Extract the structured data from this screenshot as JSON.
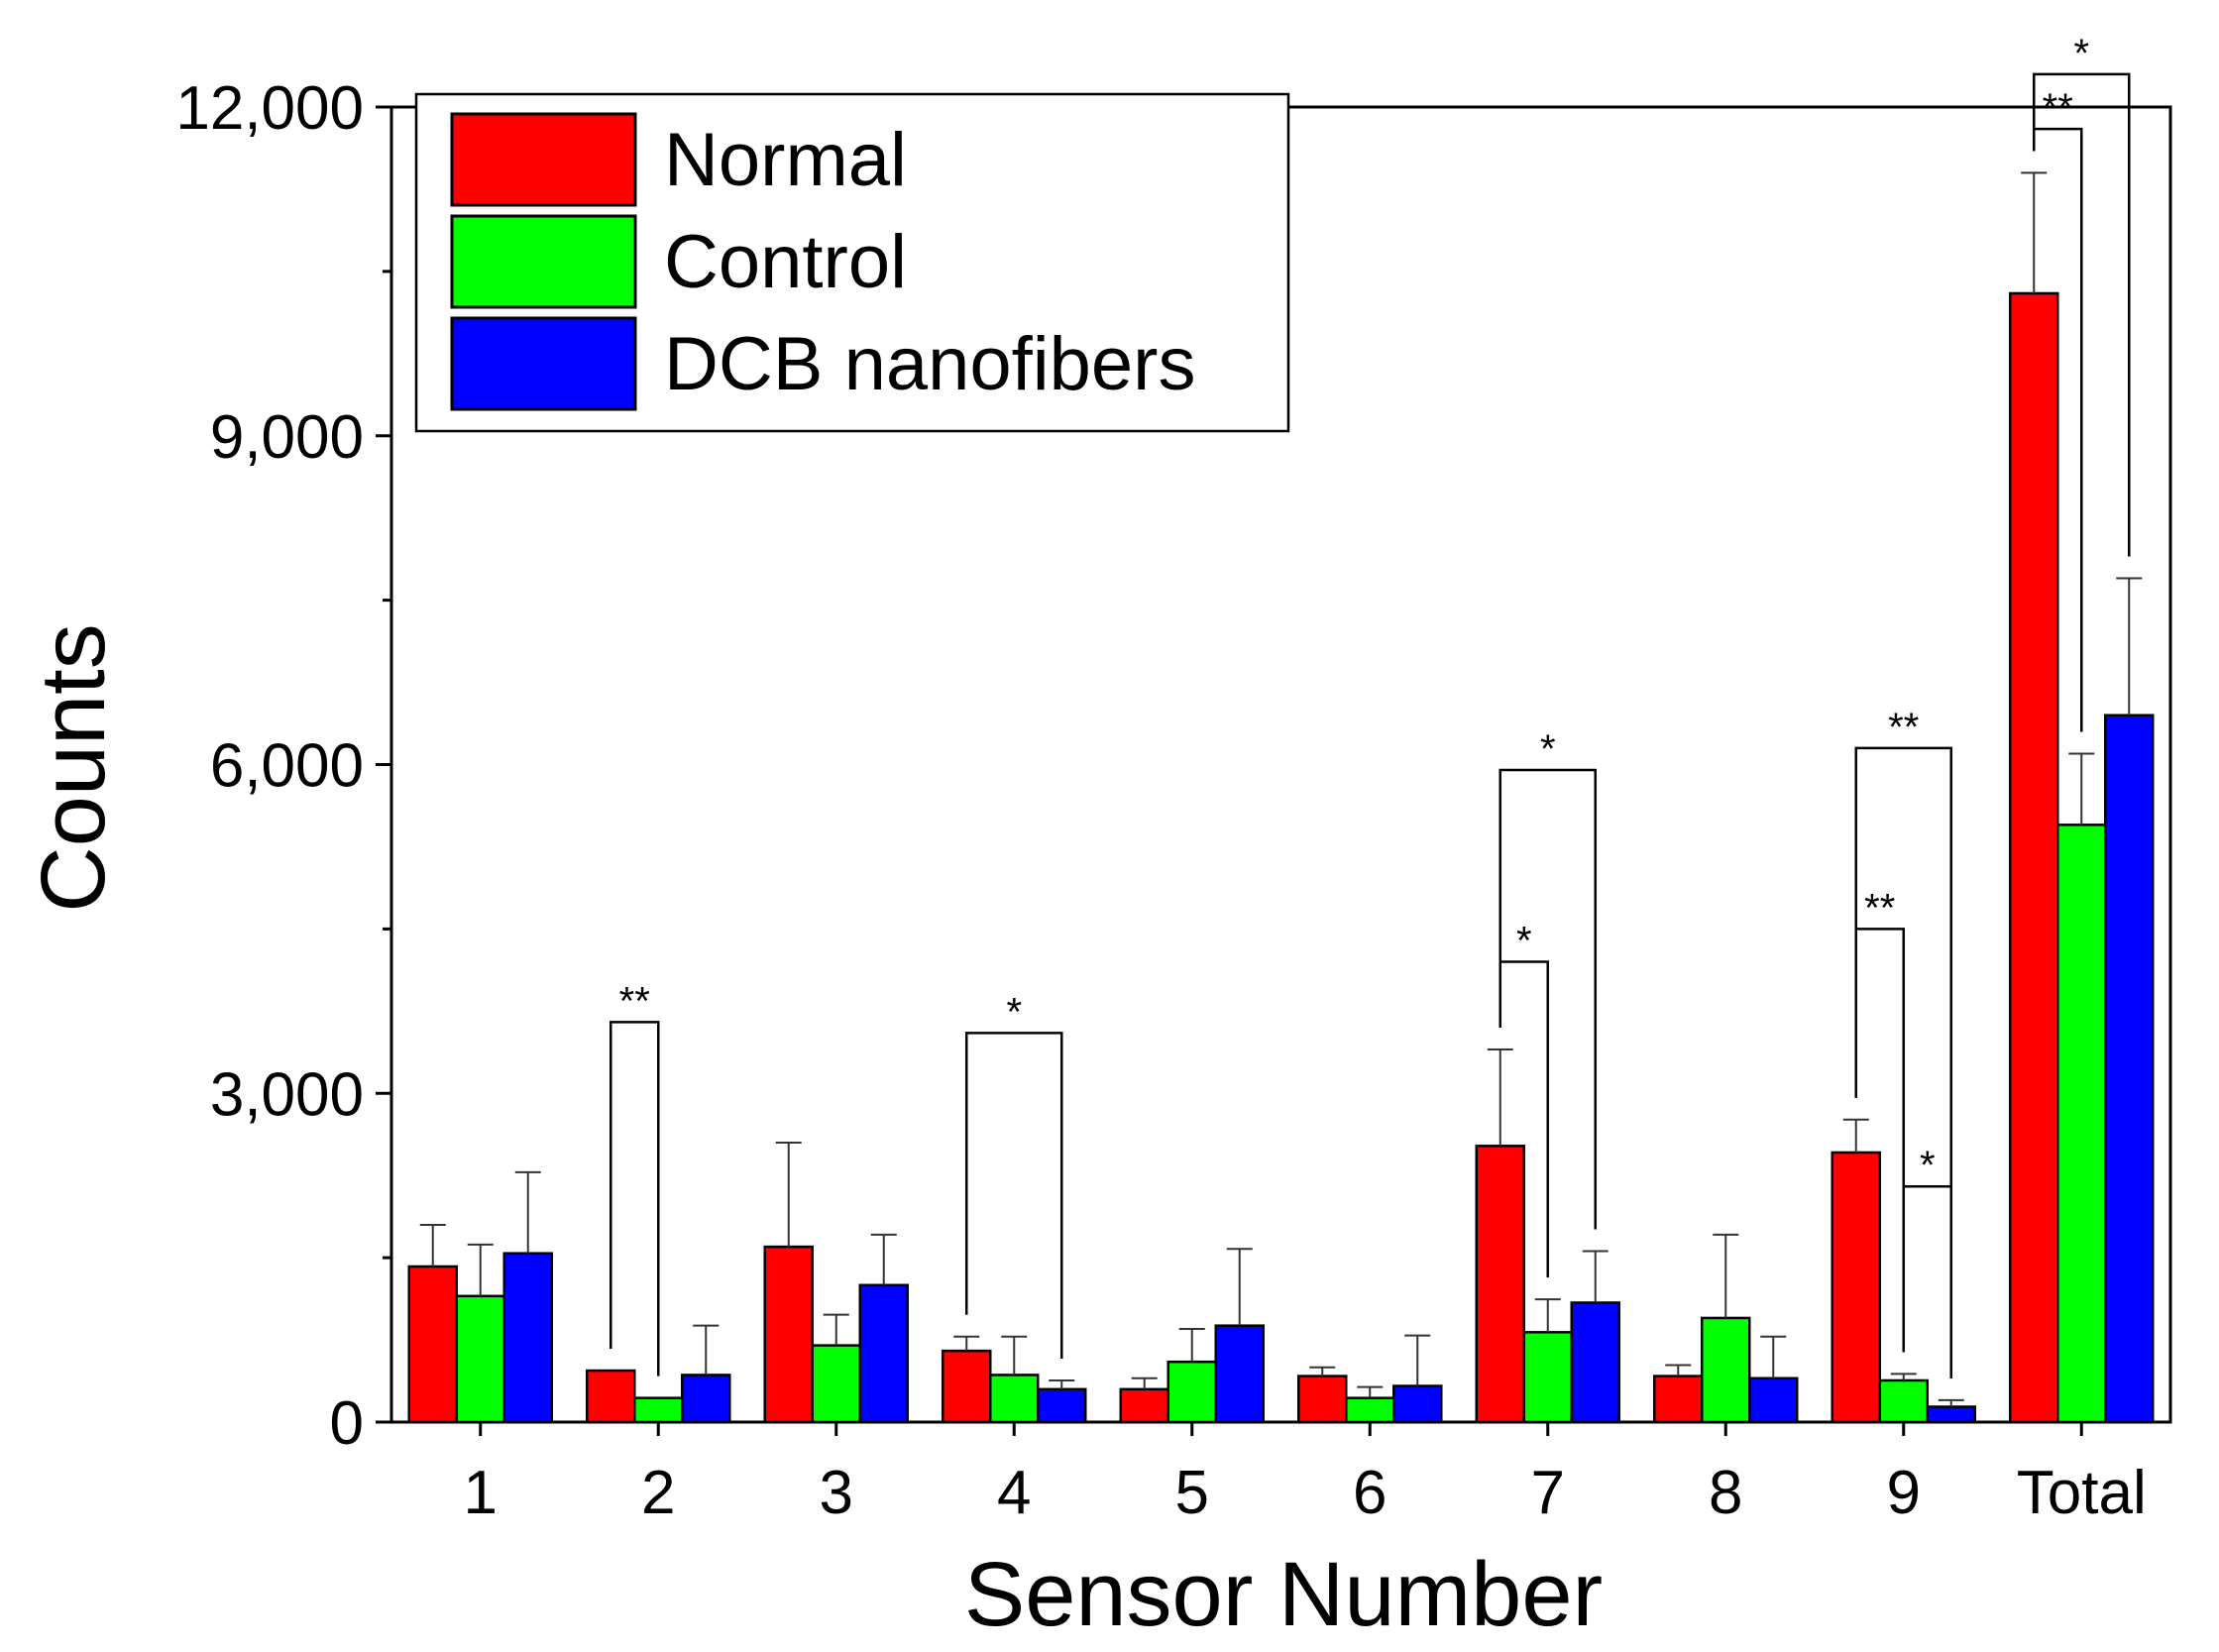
{
  "chart_data": {
    "type": "bar",
    "title": "",
    "xlabel": "Sensor Number",
    "ylabel": "Counts",
    "ylim": [
      0,
      12000
    ],
    "yticks": [
      0,
      3000,
      6000,
      9000,
      12000
    ],
    "ytick_labels": [
      "0",
      "3,000",
      "6,000",
      "9,000",
      "12,000"
    ],
    "categories": [
      "1",
      "2",
      "3",
      "4",
      "5",
      "6",
      "7",
      "8",
      "9",
      "Total"
    ],
    "legend_position": "top-left",
    "series": [
      {
        "name": "Normal",
        "color": "#ff0000",
        "values": [
          1420,
          470,
          1600,
          650,
          300,
          420,
          2520,
          420,
          2460,
          10300
        ],
        "errors": [
          380,
          0,
          950,
          130,
          100,
          80,
          880,
          100,
          300,
          1100
        ]
      },
      {
        "name": "Control",
        "color": "#00ff00",
        "values": [
          1150,
          220,
          700,
          430,
          550,
          220,
          820,
          950,
          380,
          5450
        ],
        "errors": [
          470,
          0,
          280,
          350,
          300,
          100,
          300,
          760,
          60,
          650
        ]
      },
      {
        "name": "DCB nanofibers",
        "color": "#0000ff",
        "values": [
          1540,
          430,
          1250,
          300,
          880,
          330,
          1090,
          400,
          140,
          6450
        ],
        "errors": [
          740,
          450,
          460,
          80,
          700,
          460,
          470,
          380,
          60,
          1250
        ]
      }
    ],
    "significance": [
      {
        "category": "2",
        "from": 0,
        "to": 1,
        "label": "**",
        "y": 3650
      },
      {
        "category": "4",
        "from": 0,
        "to": 2,
        "label": "*",
        "y": 3550
      },
      {
        "category": "7",
        "from": 0,
        "to": 1,
        "label": "*",
        "y": 4200
      },
      {
        "category": "7",
        "from": 0,
        "to": 2,
        "label": "*",
        "y": 5950
      },
      {
        "category": "9",
        "from": 0,
        "to": 1,
        "label": "**",
        "y": 4500
      },
      {
        "category": "9",
        "from": 1,
        "to": 2,
        "label": "*",
        "y": 2150
      },
      {
        "category": "9",
        "from": 0,
        "to": 2,
        "label": "**",
        "y": 6150
      },
      {
        "category": "Total",
        "from": 0,
        "to": 1,
        "label": "**",
        "y": 11800
      },
      {
        "category": "Total",
        "from": 0,
        "to": 2,
        "label": "*",
        "y": 12300
      }
    ]
  }
}
